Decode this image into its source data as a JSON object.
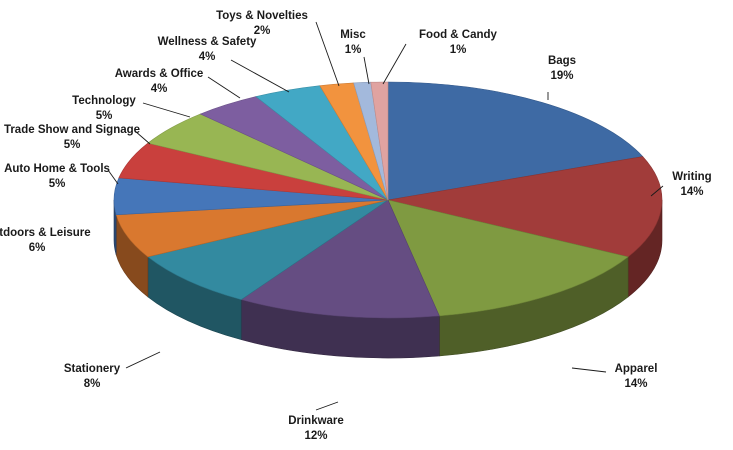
{
  "chart_data": {
    "type": "pie",
    "variant": "3d",
    "legend": "none",
    "slices": [
      {
        "label": "Bags",
        "value": 19,
        "value_label": "19%",
        "color": "#3e6aa4"
      },
      {
        "label": "Writing",
        "value": 14,
        "value_label": "14%",
        "color": "#a13c3a"
      },
      {
        "label": "Apparel",
        "value": 14,
        "value_label": "14%",
        "color": "#7f9a41"
      },
      {
        "label": "Drinkware",
        "value": 12,
        "value_label": "12%",
        "color": "#654d82"
      },
      {
        "label": "Stationery",
        "value": 8,
        "value_label": "8%",
        "color": "#338aa0"
      },
      {
        "label": "Outdoors & Leisure",
        "value": 6,
        "value_label": "6%",
        "color": "#d9782f"
      },
      {
        "label": "Auto Home & Tools",
        "value": 5,
        "value_label": "5%",
        "color": "#4576b9"
      },
      {
        "label": "Trade Show and Signage",
        "value": 5,
        "value_label": "5%",
        "color": "#c9403d"
      },
      {
        "label": "Technology",
        "value": 5,
        "value_label": "5%",
        "color": "#98b653"
      },
      {
        "label": "Awards & Office",
        "value": 4,
        "value_label": "4%",
        "color": "#7d5ea0"
      },
      {
        "label": "Wellness & Safety",
        "value": 4,
        "value_label": "4%",
        "color": "#42a8c5"
      },
      {
        "label": "Toys & Novelties",
        "value": 2,
        "value_label": "2%",
        "color": "#f2933e"
      },
      {
        "label": "Misc",
        "value": 1,
        "value_label": "1%",
        "color": "#a3b9dc"
      },
      {
        "label": "Food & Candy",
        "value": 1,
        "value_label": "1%",
        "color": "#e0a3a1"
      }
    ]
  }
}
